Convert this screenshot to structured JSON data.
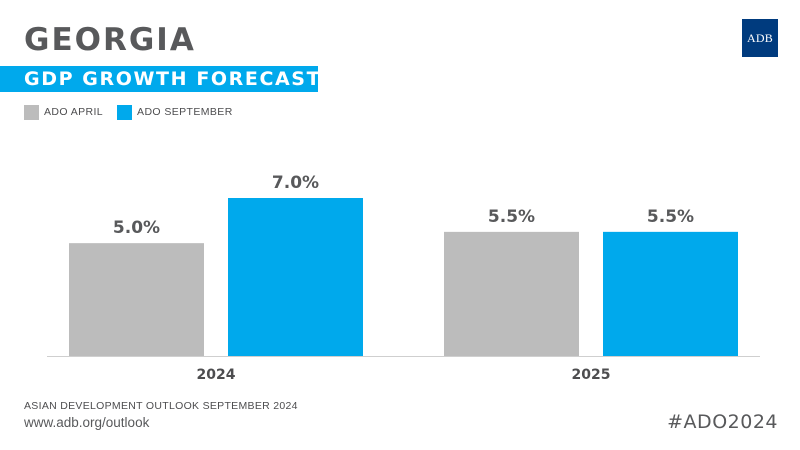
{
  "header": {
    "country": "GEORGIA",
    "subtitle": "GDP GROWTH FORECAST",
    "logo_text": "ADB"
  },
  "colors": {
    "accent": "#00a9ec",
    "gray_bar": "#bcbcbc",
    "text_dark": "#58595b",
    "logo_bg": "#003b7e"
  },
  "chart_data": {
    "type": "bar",
    "title": "GDP GROWTH FORECAST",
    "categories": [
      "2024",
      "2025"
    ],
    "series": [
      {
        "name": "ADO APRIL",
        "color": "#bcbcbc",
        "values": [
          5.0,
          5.5
        ],
        "labels": [
          "5.0%",
          "5.5%"
        ]
      },
      {
        "name": "ADO SEPTEMBER",
        "color": "#00a9ec",
        "values": [
          7.0,
          5.5
        ],
        "labels": [
          "7.0%",
          "5.5%"
        ]
      }
    ],
    "xlabel": "",
    "ylabel": "",
    "ylim": [
      0,
      7.0
    ],
    "grid": false,
    "legend": "top-left"
  },
  "footer": {
    "source": "ASIAN DEVELOPMENT OUTLOOK SEPTEMBER 2024",
    "url": "www.adb.org/outlook",
    "hashtag": "#ADO2024"
  }
}
